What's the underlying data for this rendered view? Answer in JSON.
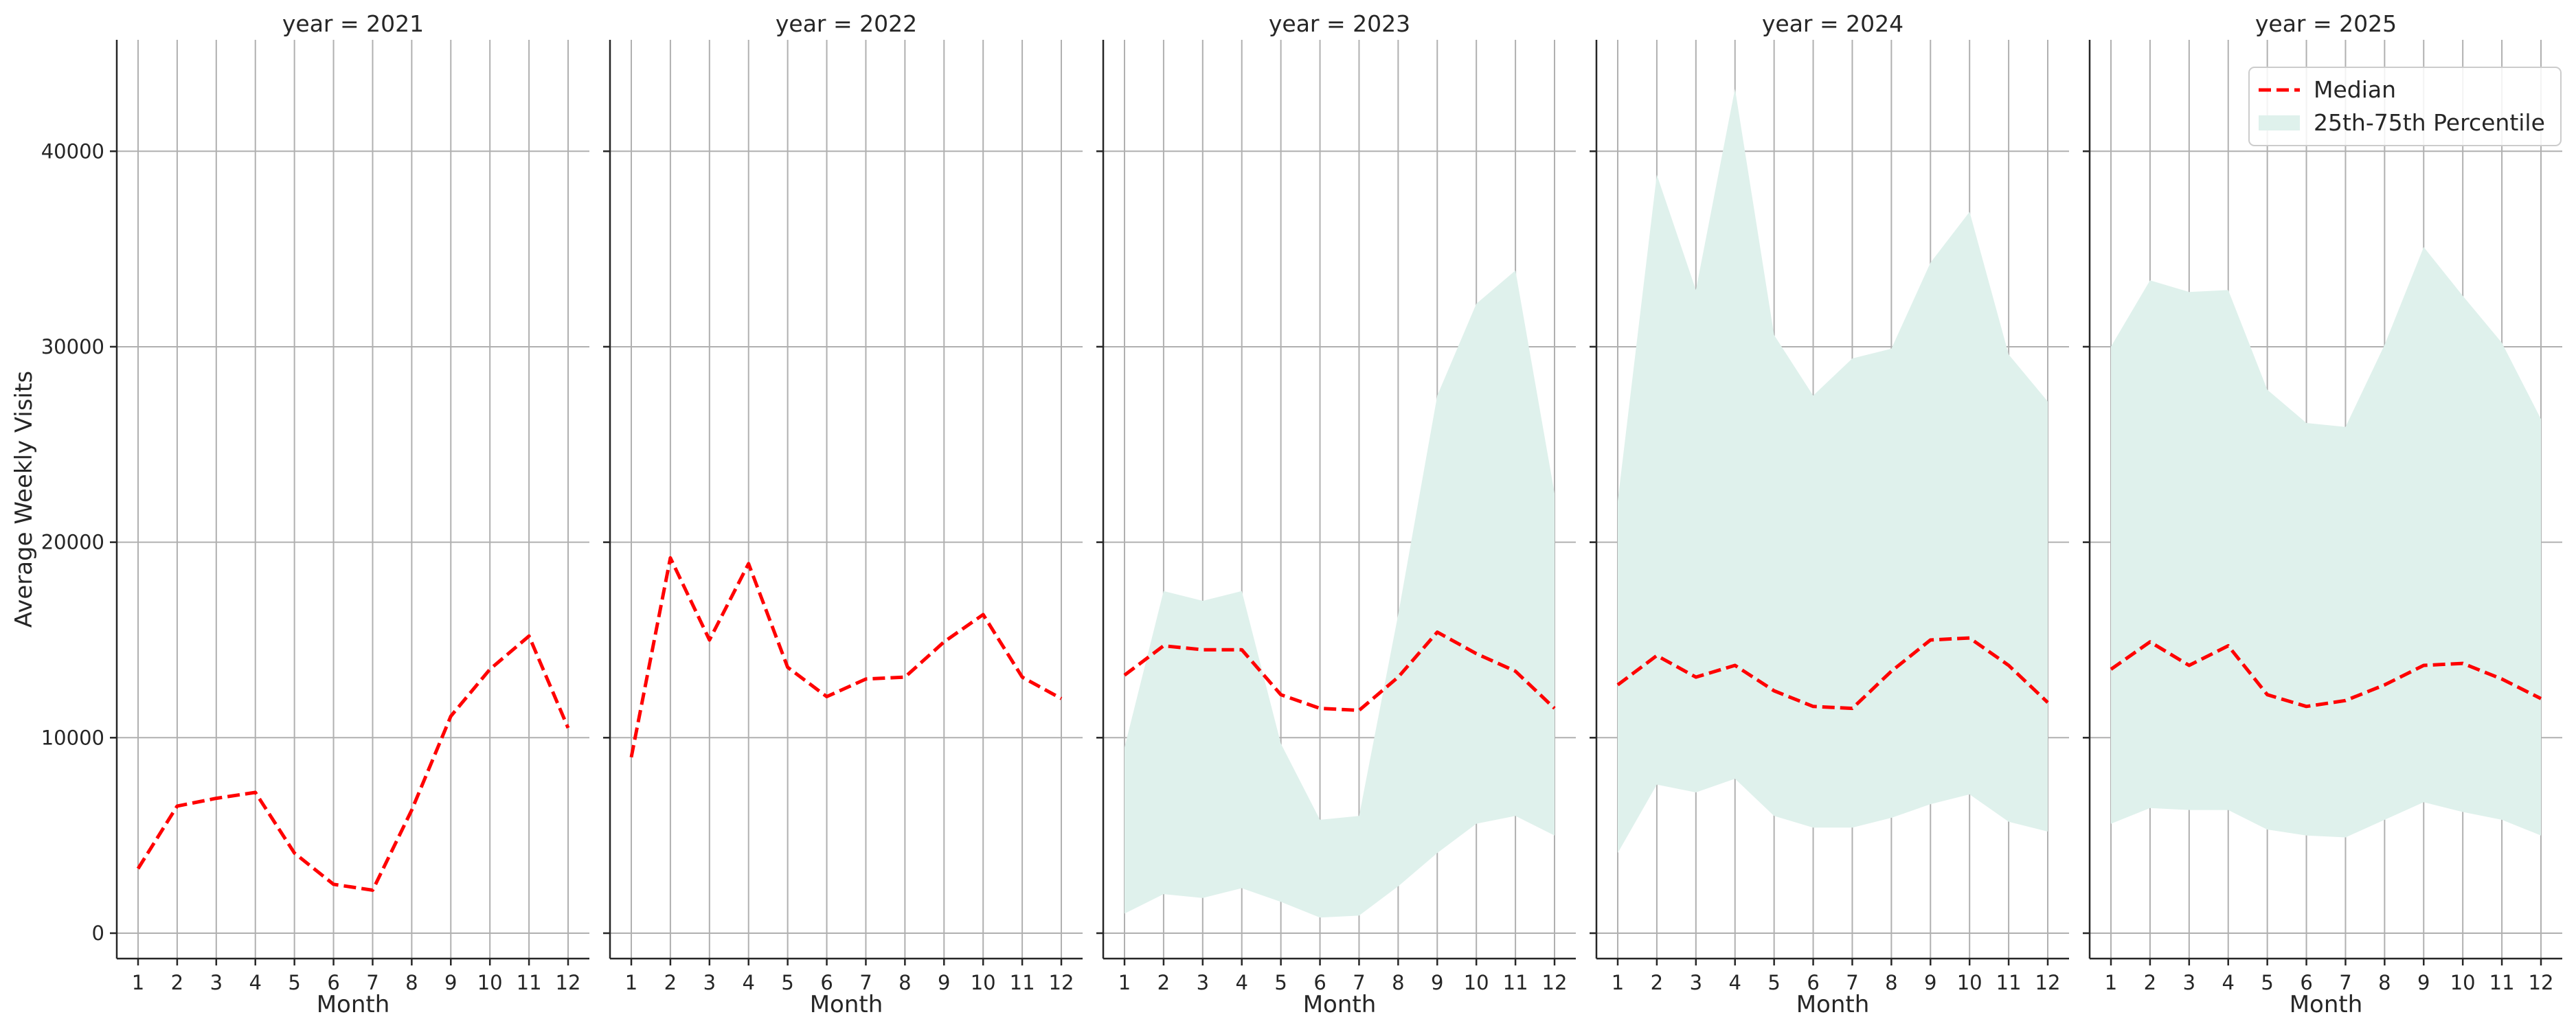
{
  "chart_data": {
    "type": "line",
    "ylabel": "Average Weekly Visits",
    "xlabel": "Month",
    "x": [
      1,
      2,
      3,
      4,
      5,
      6,
      7,
      8,
      9,
      10,
      11,
      12
    ],
    "ylim": [
      -1300,
      45700
    ],
    "yticks": [
      0,
      10000,
      20000,
      30000,
      40000
    ],
    "grid": true,
    "legend": {
      "position": "top-right",
      "entries": [
        "Median",
        "25th-75th Percentile"
      ]
    },
    "colors": {
      "median": "#ff0000",
      "band": "#dff1ec"
    },
    "panels": [
      {
        "title": "year = 2021",
        "median": [
          3300,
          6500,
          6900,
          7200,
          4100,
          2500,
          2200,
          6300,
          11100,
          13500,
          15200,
          10500
        ],
        "q25": null,
        "q75": null
      },
      {
        "title": "year = 2022",
        "median": [
          9000,
          19200,
          15000,
          18900,
          13600,
          12100,
          13000,
          13100,
          14900,
          16300,
          13100,
          12000
        ],
        "q25": null,
        "q75": null
      },
      {
        "title": "year = 2023",
        "median": [
          13200,
          14700,
          14500,
          14500,
          12200,
          11500,
          11400,
          13100,
          15400,
          14300,
          13400,
          11500
        ],
        "q25": [
          1000,
          2000,
          1800,
          2300,
          1600,
          800,
          900,
          2400,
          4100,
          5600,
          6000,
          5000
        ],
        "q75": [
          9500,
          17500,
          17000,
          17500,
          9700,
          5800,
          6000,
          16300,
          27500,
          32200,
          33900,
          22500
        ]
      },
      {
        "title": "year = 2024",
        "median": [
          12700,
          14200,
          13100,
          13700,
          12400,
          11600,
          11500,
          13400,
          15000,
          15100,
          13700,
          11800
        ],
        "q25": [
          4100,
          7600,
          7200,
          7900,
          6000,
          5400,
          5400,
          5900,
          6600,
          7100,
          5700,
          5200
        ],
        "q75": [
          22100,
          38800,
          32900,
          43200,
          30600,
          27500,
          29400,
          29900,
          34300,
          36900,
          29600,
          27200
        ]
      },
      {
        "title": "year = 2025",
        "median": [
          13500,
          14900,
          13700,
          14700,
          12200,
          11600,
          11900,
          12700,
          13700,
          13800,
          13000,
          12000
        ],
        "q25": [
          5600,
          6400,
          6300,
          6300,
          5300,
          5000,
          4900,
          5800,
          6700,
          6200,
          5800,
          5000
        ],
        "q75": [
          30000,
          33400,
          32800,
          32900,
          27800,
          26100,
          25900,
          30100,
          35100,
          32600,
          30200,
          26300
        ]
      }
    ]
  }
}
